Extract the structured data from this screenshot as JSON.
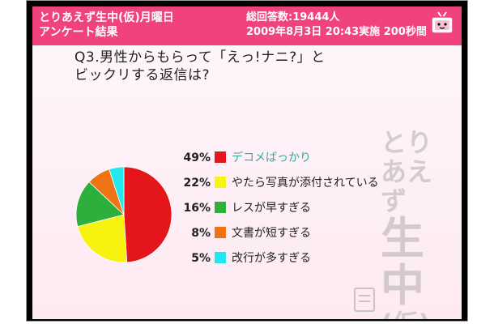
{
  "header": {
    "title_line1": "とりあえず生中(仮)月曜日",
    "title_line2": "アンケート結果",
    "info_line1": "総回答数:19444人",
    "info_line2": "2009年8月3日 20:43実施 200秒間",
    "tv_icon": "tv-icon"
  },
  "question": {
    "line1": "Q3.男性からもらって「えっ!ナニ?」と",
    "line2": "ビックリする返信は?"
  },
  "watermark": {
    "line1": "とり",
    "line2": "あえず",
    "line3": "生",
    "line4": "中",
    "line5": "(仮)"
  },
  "colors": {
    "header": "#f0427d",
    "label_highlight": "#3aa79b"
  },
  "chart_data": {
    "type": "pie",
    "title": "",
    "categories": [
      "デコメばっかり",
      "やたら写真が添付されている",
      "レスが早すぎる",
      "文書が短すぎる",
      "改行が多すぎる"
    ],
    "values": [
      49,
      22,
      16,
      8,
      5
    ],
    "value_labels": [
      "49%",
      "22%",
      "16%",
      "8%",
      "5%"
    ],
    "colors": [
      "#e5151c",
      "#f7f20f",
      "#2caf3b",
      "#f07415",
      "#22e8ef"
    ],
    "legend_position": "right"
  }
}
